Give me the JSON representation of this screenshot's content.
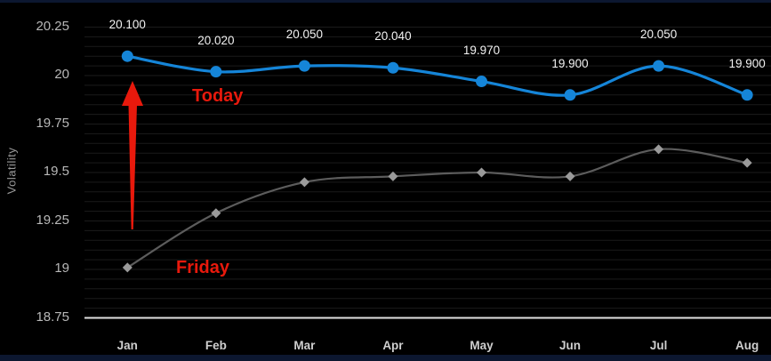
{
  "chart_data": {
    "type": "line",
    "categories": [
      "Jan",
      "Feb",
      "Mar",
      "Apr",
      "May",
      "Jun",
      "Jul",
      "Aug"
    ],
    "series": [
      {
        "name": "Today",
        "color": "#1585d8",
        "marker": "circle",
        "values": [
          20.1,
          20.02,
          20.05,
          20.04,
          19.97,
          19.9,
          20.05,
          19.9
        ],
        "point_labels": [
          "20.100",
          "20.020",
          "20.050",
          "20.040",
          "19.970",
          "19.900",
          "20.050",
          "19.900"
        ]
      },
      {
        "name": "Friday",
        "color": "#5c5c5c",
        "marker": "diamond",
        "marker_color": "#9a9a9a",
        "values": [
          19.01,
          19.29,
          19.45,
          19.48,
          19.5,
          19.48,
          19.62,
          19.55
        ],
        "point_labels": null
      }
    ],
    "ylabel": "Volatility",
    "xlabel": "",
    "yticks": [
      {
        "value": 20.25,
        "label": "20.25"
      },
      {
        "value": 20.0,
        "label": "20"
      },
      {
        "value": 19.75,
        "label": "19.75"
      },
      {
        "value": 19.5,
        "label": "19.5"
      },
      {
        "value": 19.25,
        "label": "19.25"
      },
      {
        "value": 19.0,
        "label": "19"
      },
      {
        "value": 18.75,
        "label": "18.75"
      }
    ],
    "ylim": [
      18.75,
      20.35
    ],
    "grid": {
      "minor_step": 0.05,
      "on": true
    },
    "legend_position": "none"
  },
  "annotations": {
    "today": {
      "text": "Today"
    },
    "friday": {
      "text": "Friday"
    },
    "arrow": {
      "direction": "up",
      "from_series": "Friday",
      "to_series": "Today"
    }
  },
  "colors": {
    "annotation": "#e8190c",
    "grid": "#1b1b1b",
    "axis_line": "#e0e0e0",
    "ytick_text": "#b8b8b8",
    "xtick_text": "#cfcfcf",
    "data_label_text": "#f2f2f2",
    "axis_title_text": "#9a9a9a",
    "plot_bg": "#000000",
    "edge_strip": "#0c1730"
  }
}
